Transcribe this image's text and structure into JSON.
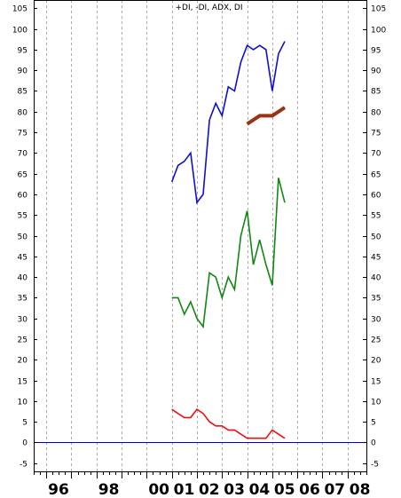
{
  "chart_data": {
    "type": "line",
    "title": "+DI, -DI, ADX, DI",
    "xlabel": "",
    "ylabel": "",
    "ylim": [
      -7,
      107
    ],
    "yticks": [
      -5,
      0,
      5,
      10,
      15,
      20,
      25,
      30,
      35,
      40,
      45,
      50,
      55,
      60,
      65,
      70,
      75,
      80,
      85,
      90,
      95,
      100,
      105
    ],
    "ytick_labels": [
      "-5",
      "0",
      "5",
      "10",
      "15",
      "20",
      "25",
      "30",
      "35",
      "40",
      "45",
      "50",
      "55",
      "60",
      "65",
      "70",
      "75",
      "80",
      "85",
      "90",
      "95",
      "100",
      "105"
    ],
    "x_domain": [
      1995.5,
      2008.75
    ],
    "x_year_labels": [
      "96",
      "98",
      "00",
      "01",
      "02",
      "03",
      "04",
      "05",
      "06",
      "07",
      "08"
    ],
    "x_year_positions": [
      1996,
      1998,
      2000,
      2001,
      2002,
      2003,
      2004,
      2005,
      2006,
      2007,
      2008
    ],
    "grid": {
      "vertical_dashed_at": [
        1996,
        1997,
        1998,
        1999,
        2000,
        2001,
        2002,
        2003,
        2004,
        2005,
        2006,
        2007,
        2008
      ]
    },
    "zero_line": 0,
    "series": [
      {
        "color": "#1010cc",
        "width": 1.6,
        "x": [
          2001.0,
          2001.25,
          2001.5,
          2001.75,
          2002.0,
          2002.25,
          2002.5,
          2002.75,
          2003.0,
          2003.25,
          2003.5,
          2003.75,
          2004.0,
          2004.25,
          2004.5,
          2004.75,
          2005.0,
          2005.25,
          2005.5
        ],
        "y": [
          63,
          67,
          68,
          70,
          58,
          60,
          78,
          82,
          79,
          86,
          85,
          92,
          96,
          95,
          96,
          95,
          85,
          94,
          97
        ]
      },
      {
        "color": "#993311",
        "width": 4,
        "x": [
          2004.0,
          2004.25,
          2004.5,
          2004.75,
          2005.0,
          2005.25,
          2005.5
        ],
        "y": [
          77,
          78,
          79,
          79,
          79,
          80,
          81
        ]
      },
      {
        "color": "#118811",
        "width": 1.6,
        "x": [
          2001.0,
          2001.25,
          2001.5,
          2001.75,
          2002.0,
          2002.25,
          2002.5,
          2002.75,
          2003.0,
          2003.25,
          2003.5,
          2003.75,
          2004.0,
          2004.25,
          2004.5,
          2004.75,
          2005.0,
          2005.25,
          2005.5
        ],
        "y": [
          35,
          35,
          31,
          34,
          30,
          28,
          41,
          40,
          35,
          40,
          37,
          50,
          56,
          43,
          49,
          43,
          38,
          64,
          58
        ]
      },
      {
        "color": "#ee1111",
        "width": 1.6,
        "x": [
          2001.0,
          2001.25,
          2001.5,
          2001.75,
          2002.0,
          2002.25,
          2002.5,
          2002.75,
          2003.0,
          2003.25,
          2003.5,
          2003.75,
          2004.0,
          2004.25,
          2004.5,
          2004.75,
          2005.0,
          2005.25,
          2005.5
        ],
        "y": [
          8,
          7,
          6,
          6,
          8,
          7,
          5,
          4,
          4,
          3,
          3,
          2,
          1,
          1,
          1,
          1,
          3,
          2,
          1
        ]
      }
    ],
    "colors": {
      "zero_line": "#0000cc",
      "grid": "#aaaaaa",
      "axis": "#000000"
    }
  }
}
